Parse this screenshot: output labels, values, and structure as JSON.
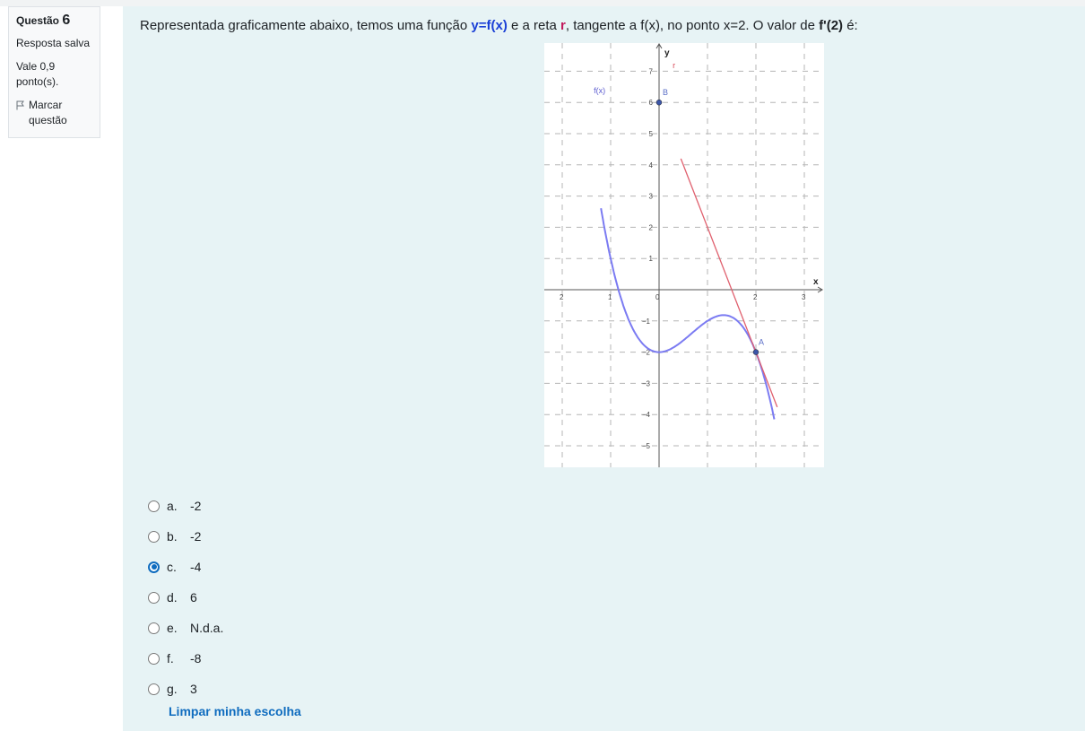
{
  "question_info": {
    "label": "Questão",
    "number": "6",
    "status": "Resposta salva",
    "points": "Vale 0,9 ponto(s).",
    "flag_label": "Marcar questão"
  },
  "question_text": {
    "part1": "Representada graficamente abaixo, temos uma função ",
    "fx": "y=f(x)",
    "part2": " e a reta ",
    "r": "r",
    "part3": ", tangente a f(x), no ponto x=2. O valor de ",
    "fprime": "f'(2)",
    "part4": " é:"
  },
  "graph": {
    "axis_x_label": "x",
    "axis_y_label": "y",
    "function_label": "f(x)",
    "line_label": "r",
    "point_a_label": "A",
    "point_b_label": "B",
    "x_ticks": [
      "2",
      "1",
      "0",
      "2",
      "3"
    ],
    "y_ticks": [
      "7",
      "6",
      "5",
      "4",
      "3",
      "2",
      "1",
      "−1",
      "−2",
      "−3",
      "−4",
      "−5"
    ],
    "colors": {
      "function": "#7b7bf2",
      "tangent": "#e0606e",
      "point": "#3c56a8"
    }
  },
  "options": [
    {
      "letter": "a.",
      "text": "-2",
      "selected": false
    },
    {
      "letter": "b.",
      "text": "-2",
      "selected": false
    },
    {
      "letter": "c.",
      "text": "-4",
      "selected": true
    },
    {
      "letter": "d.",
      "text": "6",
      "selected": false
    },
    {
      "letter": "e.",
      "text": "N.d.a.",
      "selected": false
    },
    {
      "letter": "f.",
      "text": "-8",
      "selected": false
    },
    {
      "letter": "g.",
      "text": "3",
      "selected": false
    }
  ],
  "clear_label": "Limpar minha escolha"
}
